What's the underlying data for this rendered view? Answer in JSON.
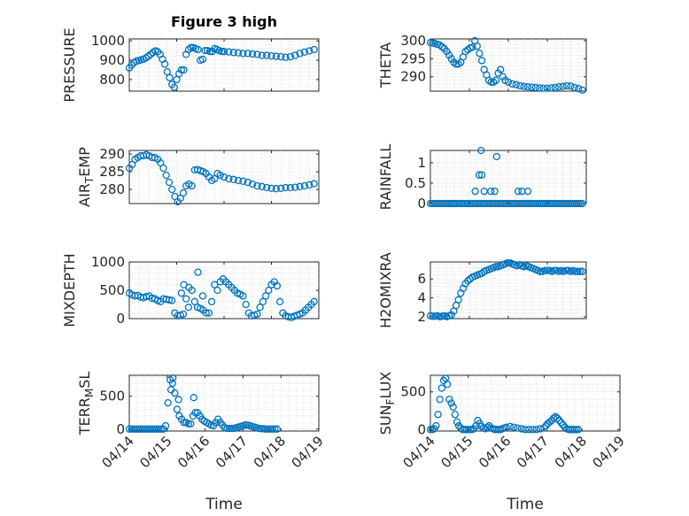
{
  "figure": {
    "title": "Figure 3 high"
  },
  "colors": {
    "marker": "#0072bd",
    "axis": "#262626",
    "grid": "#c8c8c8"
  },
  "chart_data": [
    {
      "type": "scatter",
      "id": "pressure",
      "ylabel": "PRESSURE",
      "title": "Figure 3 high",
      "ylim": [
        740,
        1010
      ],
      "yticks": [
        800,
        900,
        1000
      ],
      "xlim": [
        0,
        4
      ],
      "xticks": [
        0,
        1,
        2,
        3,
        4
      ],
      "xticklabels": [
        "04/14",
        "04/15",
        "04/16",
        "04/17",
        "04/18"
      ],
      "show_xticklabels": false,
      "x": [
        0.0,
        0.05,
        0.1,
        0.15,
        0.2,
        0.25,
        0.3,
        0.35,
        0.4,
        0.45,
        0.5,
        0.55,
        0.6,
        0.65,
        0.7,
        0.75,
        0.8,
        0.85,
        0.9,
        0.95,
        1.0,
        1.05,
        1.1,
        1.15,
        1.2,
        1.25,
        1.3,
        1.35,
        1.4,
        1.45,
        1.5,
        1.55,
        1.6,
        1.65,
        1.7,
        1.75,
        1.8,
        1.85,
        1.9,
        1.95,
        2.0,
        2.1,
        2.2,
        2.3,
        2.4,
        2.5,
        2.6,
        2.7,
        2.8,
        2.9,
        3.0,
        3.1,
        3.2,
        3.3,
        3.4,
        3.5,
        3.6,
        3.7,
        3.8,
        3.9
      ],
      "y": [
        860,
        875,
        888,
        895,
        898,
        902,
        905,
        912,
        920,
        930,
        940,
        948,
        944,
        930,
        905,
        880,
        840,
        810,
        775,
        760,
        800,
        830,
        850,
        850,
        930,
        955,
        965,
        965,
        960,
        955,
        900,
        905,
        950,
        950,
        945,
        945,
        960,
        955,
        950,
        945,
        945,
        943,
        940,
        938,
        935,
        935,
        932,
        930,
        925,
        925,
        922,
        920,
        918,
        915,
        918,
        925,
        935,
        942,
        948,
        955
      ]
    },
    {
      "type": "scatter",
      "id": "theta",
      "ylabel": "THETA",
      "ylim": [
        286,
        300.5
      ],
      "yticks": [
        290,
        295,
        300
      ],
      "xlim": [
        0,
        4
      ],
      "xticks": [
        0,
        1,
        2,
        3,
        4
      ],
      "xticklabels": [
        "04/14",
        "04/15",
        "04/16",
        "04/17",
        "04/18"
      ],
      "show_xticklabels": false,
      "x": [
        0.0,
        0.06,
        0.12,
        0.18,
        0.24,
        0.3,
        0.36,
        0.42,
        0.48,
        0.54,
        0.6,
        0.66,
        0.72,
        0.78,
        0.84,
        0.9,
        0.96,
        1.02,
        1.08,
        1.14,
        1.2,
        1.26,
        1.32,
        1.38,
        1.44,
        1.5,
        1.56,
        1.62,
        1.68,
        1.74,
        1.8,
        1.86,
        1.92,
        2.0,
        2.1,
        2.2,
        2.3,
        2.4,
        2.5,
        2.6,
        2.7,
        2.8,
        2.9,
        3.0,
        3.1,
        3.2,
        3.3,
        3.4,
        3.5,
        3.6,
        3.7,
        3.8,
        3.9
      ],
      "y": [
        299.5,
        299.4,
        299.2,
        299.0,
        298.8,
        298.3,
        297.8,
        297.0,
        296.0,
        295.0,
        294.0,
        293.5,
        293.5,
        294.0,
        295.5,
        297.0,
        297.5,
        298.0,
        298.2,
        300.0,
        298.5,
        296.5,
        294.5,
        292.0,
        290.5,
        289.0,
        288.5,
        288.5,
        289.0,
        291.0,
        292.0,
        290.0,
        289.0,
        288.5,
        288.0,
        287.8,
        287.5,
        287.3,
        287.2,
        287.1,
        287.0,
        286.9,
        286.8,
        286.8,
        286.9,
        287.0,
        287.2,
        287.3,
        287.5,
        287.4,
        287.0,
        286.7,
        286.3
      ]
    },
    {
      "type": "scatter",
      "id": "air_temp",
      "ylabel": "AIR_TEMP",
      "ylabel_parts": [
        {
          "text": "AIR"
        },
        {
          "text": "T",
          "sub": true
        },
        {
          "text": "EMP"
        }
      ],
      "ylim": [
        276,
        291
      ],
      "yticks": [
        280,
        285,
        290
      ],
      "xlim": [
        0,
        4
      ],
      "xticks": [
        0,
        1,
        2,
        3,
        4
      ],
      "xticklabels": [
        "04/14",
        "04/15",
        "04/16",
        "04/17",
        "04/18"
      ],
      "show_xticklabels": false,
      "x": [
        0.0,
        0.06,
        0.12,
        0.18,
        0.24,
        0.3,
        0.36,
        0.42,
        0.48,
        0.54,
        0.6,
        0.66,
        0.72,
        0.78,
        0.84,
        0.9,
        0.96,
        1.02,
        1.08,
        1.14,
        1.2,
        1.26,
        1.32,
        1.38,
        1.44,
        1.5,
        1.56,
        1.62,
        1.68,
        1.74,
        1.8,
        1.86,
        1.92,
        2.0,
        2.1,
        2.2,
        2.3,
        2.4,
        2.5,
        2.6,
        2.7,
        2.8,
        2.9,
        3.0,
        3.1,
        3.2,
        3.3,
        3.4,
        3.5,
        3.6,
        3.7,
        3.8,
        3.9
      ],
      "y": [
        286.0,
        287.0,
        288.5,
        289.0,
        289.5,
        289.5,
        289.8,
        289.5,
        289.0,
        289.0,
        288.5,
        287.5,
        286.0,
        284.0,
        282.0,
        280.0,
        278.0,
        276.5,
        277.5,
        279.0,
        281.0,
        281.5,
        281.0,
        285.5,
        285.6,
        285.3,
        285.0,
        284.5,
        283.5,
        282.5,
        283.0,
        284.5,
        284.0,
        283.5,
        283.0,
        282.8,
        282.5,
        282.3,
        282.0,
        281.5,
        281.0,
        280.8,
        280.5,
        280.3,
        280.2,
        280.3,
        280.5,
        280.5,
        280.6,
        280.8,
        281.0,
        281.3,
        281.6
      ]
    },
    {
      "type": "scatter",
      "id": "rainfall",
      "ylabel": "RAINFALL",
      "ylim": [
        0,
        1.3
      ],
      "yticks": [
        0,
        0.5,
        1
      ],
      "yticklabels": [
        "0",
        "0.5",
        "1"
      ],
      "xlim": [
        0,
        4
      ],
      "xticks": [
        0,
        1,
        2,
        3,
        4
      ],
      "xticklabels": [
        "04/14",
        "04/15",
        "04/16",
        "04/17",
        "04/18"
      ],
      "show_xticklabels": false,
      "x": [
        0.0,
        0.05,
        0.1,
        0.15,
        0.2,
        0.25,
        0.3,
        0.35,
        0.4,
        0.45,
        0.5,
        0.55,
        0.6,
        0.65,
        0.7,
        0.75,
        0.8,
        0.85,
        0.9,
        0.95,
        1.0,
        1.05,
        1.1,
        1.15,
        1.2,
        1.25,
        1.3,
        1.35,
        1.4,
        1.45,
        1.5,
        1.55,
        1.6,
        1.65,
        1.7,
        1.75,
        1.8,
        1.85,
        1.9,
        1.95,
        2.0,
        2.05,
        2.1,
        2.15,
        2.2,
        2.25,
        2.3,
        2.35,
        2.4,
        2.45,
        2.5,
        2.55,
        2.6,
        2.65,
        2.7,
        2.75,
        2.8,
        2.85,
        2.9,
        2.95,
        3.0,
        3.05,
        3.1,
        3.15,
        3.2,
        3.25,
        3.3,
        3.35,
        3.4,
        3.45,
        3.5,
        3.55,
        3.6,
        3.65,
        3.7,
        3.75,
        3.8,
        3.85,
        3.9,
        1.15,
        1.25,
        1.3,
        1.32,
        1.38,
        1.55,
        1.65,
        2.25,
        2.35,
        2.5,
        1.7
      ],
      "y": [
        0,
        0,
        0,
        0,
        0,
        0,
        0,
        0,
        0,
        0,
        0,
        0,
        0,
        0,
        0,
        0,
        0,
        0,
        0,
        0,
        0,
        0,
        0,
        0,
        0,
        0,
        0,
        0,
        0,
        0,
        0,
        0,
        0,
        0,
        0,
        0,
        0,
        0,
        0,
        0,
        0,
        0,
        0,
        0,
        0,
        0,
        0,
        0,
        0,
        0,
        0,
        0,
        0,
        0,
        0,
        0,
        0,
        0,
        0,
        0,
        0,
        0,
        0,
        0,
        0,
        0,
        0,
        0,
        0,
        0,
        0,
        0,
        0,
        0,
        0,
        0,
        0,
        0,
        0,
        0.3,
        0.7,
        1.3,
        0.7,
        0.3,
        0.3,
        0.3,
        0.3,
        0.3,
        0.3,
        1.15
      ]
    },
    {
      "type": "scatter",
      "id": "mixdepth",
      "ylabel": "MIXDEPTH",
      "ylim": [
        0,
        1000
      ],
      "yticks": [
        0,
        500,
        1000
      ],
      "xlim": [
        0,
        4
      ],
      "xticks": [
        0,
        1,
        2,
        3,
        4
      ],
      "xticklabels": [
        "04/14",
        "04/15",
        "04/16",
        "04/17",
        "04/18"
      ],
      "show_xticklabels": false,
      "x": [
        0.0,
        0.06,
        0.12,
        0.18,
        0.24,
        0.3,
        0.36,
        0.42,
        0.48,
        0.54,
        0.6,
        0.66,
        0.72,
        0.78,
        0.84,
        0.9,
        0.96,
        1.02,
        1.08,
        1.14,
        1.2,
        1.26,
        1.32,
        1.38,
        1.44,
        1.5,
        1.56,
        1.62,
        1.68,
        1.74,
        1.8,
        1.86,
        1.92,
        1.98,
        2.04,
        2.1,
        2.16,
        2.22,
        2.28,
        2.34,
        2.4,
        2.46,
        2.52,
        2.58,
        2.64,
        2.7,
        2.76,
        2.82,
        2.88,
        2.94,
        3.0,
        3.06,
        3.12,
        3.18,
        3.24,
        3.3,
        3.36,
        3.42,
        3.48,
        3.54,
        3.6,
        3.66,
        3.72,
        3.78,
        3.84,
        3.9,
        1.1,
        1.15,
        1.25,
        1.45,
        1.55
      ],
      "y": [
        450,
        420,
        400,
        410,
        380,
        370,
        390,
        400,
        360,
        350,
        320,
        300,
        350,
        340,
        330,
        320,
        100,
        50,
        60,
        80,
        350,
        550,
        500,
        300,
        200,
        180,
        150,
        100,
        100,
        300,
        600,
        500,
        650,
        700,
        650,
        600,
        550,
        500,
        450,
        430,
        400,
        250,
        100,
        50,
        60,
        80,
        200,
        300,
        400,
        500,
        600,
        650,
        580,
        300,
        100,
        50,
        30,
        20,
        40,
        60,
        80,
        100,
        150,
        200,
        250,
        300,
        450,
        600,
        200,
        820,
        400
      ]
    },
    {
      "type": "scatter",
      "id": "h2omixra",
      "ylabel": "H2OMIXRA",
      "ylim": [
        1.8,
        7.8
      ],
      "yticks": [
        2,
        4,
        6
      ],
      "xlim": [
        0,
        4
      ],
      "xticks": [
        0,
        1,
        2,
        3,
        4
      ],
      "xticklabels": [
        "04/14",
        "04/15",
        "04/16",
        "04/17",
        "04/18"
      ],
      "show_xticklabels": false,
      "x": [
        0.0,
        0.06,
        0.12,
        0.18,
        0.24,
        0.3,
        0.36,
        0.42,
        0.48,
        0.54,
        0.6,
        0.66,
        0.72,
        0.78,
        0.84,
        0.9,
        0.96,
        1.02,
        1.08,
        1.14,
        1.2,
        1.26,
        1.32,
        1.38,
        1.44,
        1.5,
        1.56,
        1.62,
        1.68,
        1.74,
        1.8,
        1.86,
        1.92,
        1.98,
        2.04,
        2.1,
        2.16,
        2.22,
        2.28,
        2.34,
        2.4,
        2.46,
        2.52,
        2.58,
        2.64,
        2.7,
        2.76,
        2.82,
        2.88,
        2.94,
        3.0,
        3.06,
        3.12,
        3.18,
        3.24,
        3.3,
        3.36,
        3.42,
        3.48,
        3.54,
        3.6,
        3.66,
        3.72,
        3.78,
        3.84,
        3.9
      ],
      "y": [
        2.1,
        2.05,
        2.05,
        2.1,
        2.0,
        2.05,
        2.1,
        2.0,
        2.1,
        2.2,
        2.6,
        3.2,
        3.8,
        4.5,
        5.0,
        5.5,
        5.8,
        6.0,
        6.2,
        6.3,
        6.4,
        6.5,
        6.6,
        6.8,
        6.9,
        7.0,
        7.1,
        7.2,
        7.3,
        7.3,
        7.4,
        7.5,
        7.6,
        7.7,
        7.7,
        7.6,
        7.5,
        7.4,
        7.5,
        7.4,
        7.3,
        7.4,
        7.3,
        7.2,
        7.1,
        7.0,
        6.9,
        6.8,
        6.8,
        6.9,
        6.9,
        6.9,
        6.8,
        6.9,
        6.9,
        6.8,
        6.9,
        6.8,
        6.9,
        6.9,
        6.8,
        6.9,
        6.8,
        6.8,
        6.8,
        6.8
      ]
    },
    {
      "type": "scatter",
      "id": "terr_msl",
      "ylabel": "TERR_MSL",
      "ylabel_parts": [
        {
          "text": "TERR"
        },
        {
          "text": "M",
          "sub": true
        },
        {
          "text": "SL"
        }
      ],
      "ylim": [
        -30,
        820
      ],
      "yticks": [
        0,
        500
      ],
      "xlim": [
        0,
        5
      ],
      "xticks": [
        0,
        1,
        2,
        3,
        4,
        5
      ],
      "xticklabels": [
        "04/14",
        "04/15",
        "04/16",
        "04/17",
        "04/18",
        "04/19"
      ],
      "show_xticklabels": true,
      "xlabel": "Time",
      "x": [
        0.0,
        0.06,
        0.12,
        0.18,
        0.24,
        0.3,
        0.36,
        0.42,
        0.48,
        0.54,
        0.6,
        0.66,
        0.72,
        0.78,
        0.84,
        0.9,
        0.96,
        1.02,
        1.08,
        1.14,
        1.2,
        1.26,
        1.32,
        1.38,
        1.44,
        1.5,
        1.56,
        1.62,
        1.68,
        1.74,
        1.8,
        1.86,
        1.92,
        1.98,
        2.04,
        2.1,
        2.16,
        2.22,
        2.28,
        2.34,
        2.4,
        2.46,
        2.52,
        2.58,
        2.64,
        2.7,
        2.76,
        2.82,
        2.88,
        2.94,
        3.0,
        3.06,
        3.12,
        3.18,
        3.24,
        3.3,
        3.36,
        3.42,
        3.48,
        3.54,
        3.6,
        3.66,
        3.72,
        3.78,
        3.84,
        3.9,
        1.1,
        1.3,
        1.15,
        1.7
      ],
      "y": [
        0,
        0,
        0,
        0,
        0,
        0,
        0,
        0,
        0,
        0,
        0,
        0,
        0,
        0,
        0,
        0,
        50,
        400,
        750,
        700,
        550,
        300,
        200,
        150,
        100,
        100,
        80,
        80,
        200,
        250,
        250,
        200,
        150,
        120,
        100,
        80,
        60,
        50,
        100,
        150,
        100,
        60,
        20,
        10,
        10,
        10,
        10,
        20,
        30,
        40,
        50,
        60,
        60,
        50,
        40,
        30,
        20,
        10,
        5,
        5,
        0,
        0,
        0,
        0,
        0,
        0,
        600,
        450,
        780,
        480
      ]
    },
    {
      "type": "scatter",
      "id": "sun_flux",
      "ylabel": "SUN_FLUX",
      "ylabel_parts": [
        {
          "text": "SUN"
        },
        {
          "text": "F",
          "sub": true
        },
        {
          "text": "LUX"
        }
      ],
      "ylim": [
        -20,
        720
      ],
      "yticks": [
        0,
        500
      ],
      "xlim": [
        0,
        5
      ],
      "xticks": [
        0,
        1,
        2,
        3,
        4,
        5
      ],
      "xticklabels": [
        "04/14",
        "04/15",
        "04/16",
        "04/17",
        "04/18",
        "04/19"
      ],
      "show_xticklabels": true,
      "xlabel": "Time",
      "x": [
        0.0,
        0.05,
        0.1,
        0.15,
        0.2,
        0.25,
        0.3,
        0.35,
        0.4,
        0.45,
        0.5,
        0.55,
        0.6,
        0.65,
        0.7,
        0.75,
        0.8,
        0.85,
        0.9,
        0.95,
        1.0,
        1.05,
        1.1,
        1.15,
        1.2,
        1.25,
        1.3,
        1.35,
        1.4,
        1.45,
        1.5,
        1.55,
        1.6,
        1.65,
        1.7,
        1.75,
        1.8,
        1.85,
        1.9,
        1.95,
        2.0,
        2.1,
        2.2,
        2.3,
        2.4,
        2.5,
        2.6,
        2.7,
        2.8,
        2.9,
        3.0,
        3.05,
        3.1,
        3.15,
        3.2,
        3.25,
        3.3,
        3.35,
        3.4,
        3.45,
        3.5,
        3.55,
        3.6,
        3.65,
        3.7,
        3.75,
        3.8,
        3.85,
        3.9
      ],
      "y": [
        0,
        0,
        10,
        50,
        200,
        400,
        550,
        650,
        680,
        600,
        400,
        350,
        300,
        200,
        100,
        50,
        20,
        0,
        0,
        0,
        0,
        0,
        0,
        10,
        50,
        120,
        80,
        40,
        20,
        10,
        30,
        50,
        20,
        10,
        0,
        0,
        0,
        0,
        10,
        20,
        30,
        40,
        30,
        20,
        10,
        0,
        0,
        0,
        0,
        10,
        20,
        50,
        80,
        100,
        120,
        150,
        170,
        150,
        120,
        90,
        60,
        30,
        10,
        0,
        0,
        0,
        0,
        0,
        0
      ]
    }
  ]
}
